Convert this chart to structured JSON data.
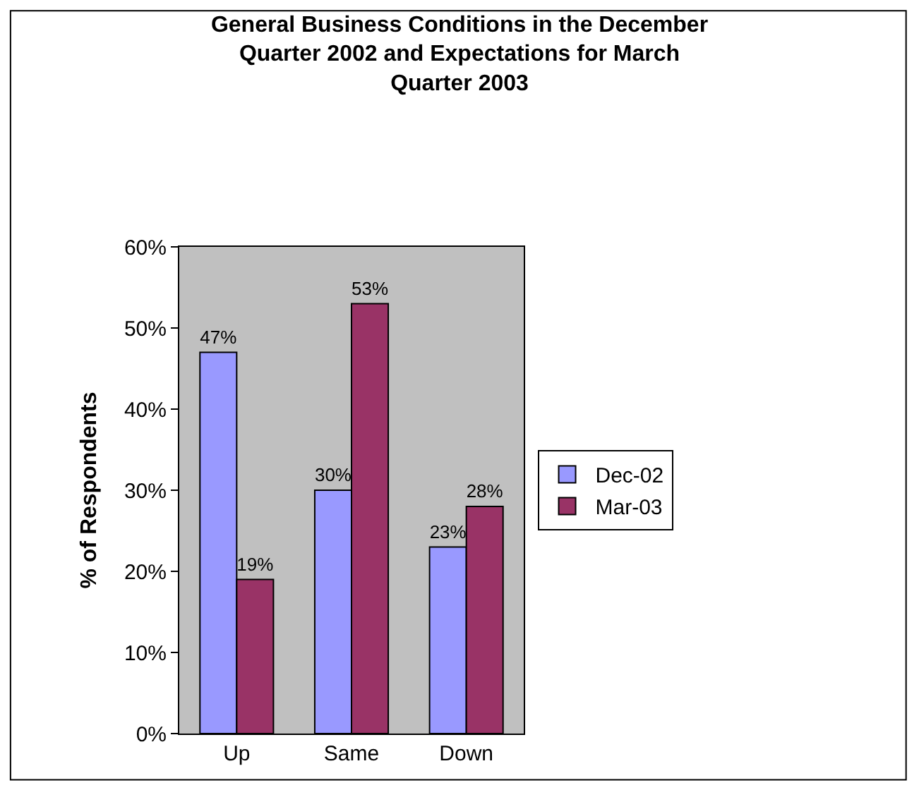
{
  "chart_data": {
    "type": "bar",
    "title": "General Business Conditions in the December Quarter 2002 and Expectations for March Quarter 2003",
    "ylabel": "% of Respondents",
    "categories": [
      "Up",
      "Same",
      "Down"
    ],
    "series": [
      {
        "name": "Dec-02",
        "color": "#9999ff",
        "values": [
          47,
          30,
          23
        ],
        "value_labels": [
          "47%",
          "30%",
          "23%"
        ]
      },
      {
        "name": "Mar-03",
        "color": "#993366",
        "values": [
          19,
          53,
          28
        ],
        "value_labels": [
          "19%",
          "53%",
          "28%"
        ]
      }
    ],
    "ylim": [
      0,
      60
    ],
    "yticks": [
      {
        "value": 0,
        "label": "0%"
      },
      {
        "value": 10,
        "label": "10%"
      },
      {
        "value": 20,
        "label": "20%"
      },
      {
        "value": 30,
        "label": "30%"
      },
      {
        "value": 40,
        "label": "40%"
      },
      {
        "value": 50,
        "label": "50%"
      },
      {
        "value": 60,
        "label": "60%"
      }
    ],
    "grid": false,
    "legend": "right"
  }
}
